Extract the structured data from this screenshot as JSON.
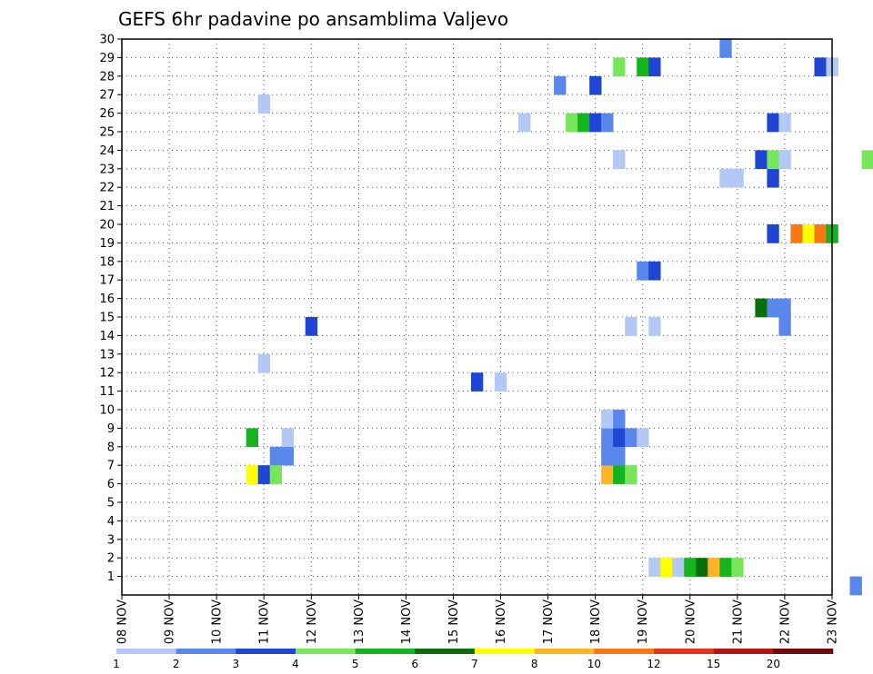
{
  "chart_data": {
    "type": "heatmap",
    "title": "GEFS 6hr padavine po ansamblima Valjevo",
    "y_ticks": [
      "1",
      "2",
      "3",
      "4",
      "5",
      "6",
      "7",
      "8",
      "9",
      "10",
      "11",
      "12",
      "13",
      "14",
      "15",
      "16",
      "17",
      "18",
      "19",
      "20",
      "21",
      "22",
      "23",
      "24",
      "25",
      "26",
      "27",
      "28",
      "29",
      "30"
    ],
    "ylim": [
      0,
      30
    ],
    "x_ticks": [
      "08 NOV",
      "09 NOV",
      "10 NOV",
      "11 NOV",
      "12 NOV",
      "13 NOV",
      "14 NOV",
      "15 NOV",
      "16 NOV",
      "17 NOV",
      "18 NOV",
      "19 NOV",
      "20 NOV",
      "21 NOV",
      "22 NOV",
      "23 NOV"
    ],
    "x_units": "days from 08 NOV 00Z, 6-hour steps",
    "xlim": [
      0,
      15
    ],
    "grid": true,
    "colorbar": {
      "labels": [
        "1",
        "2",
        "3",
        "4",
        "5",
        "6",
        "7",
        "8",
        "10",
        "12",
        "15",
        "20"
      ],
      "colors": [
        "#b4c8f5",
        "#5a87eb",
        "#1e46d2",
        "#78e65a",
        "#14b41e",
        "#0a6e0a",
        "#ffff00",
        "#ffb428",
        "#fa7814",
        "#e63214",
        "#b41414",
        "#6e0a0a"
      ]
    },
    "cells": [
      [
        11.25,
        1,
        1
      ],
      [
        11.5,
        1,
        7
      ],
      [
        11.75,
        1,
        1
      ],
      [
        12.0,
        1,
        5
      ],
      [
        12.25,
        1,
        6
      ],
      [
        12.5,
        1,
        8
      ],
      [
        12.75,
        1,
        5
      ],
      [
        13.0,
        1,
        4
      ],
      [
        10.25,
        6,
        8
      ],
      [
        10.5,
        6,
        5
      ],
      [
        10.75,
        6,
        4
      ],
      [
        10.25,
        7,
        2
      ],
      [
        10.5,
        7,
        2
      ],
      [
        10.25,
        8,
        2
      ],
      [
        10.5,
        8,
        3
      ],
      [
        10.75,
        8,
        2
      ],
      [
        11.0,
        8,
        1
      ],
      [
        10.25,
        9,
        1
      ],
      [
        10.5,
        9,
        2
      ],
      [
        2.75,
        8,
        5
      ],
      [
        3.25,
        7,
        2
      ],
      [
        3.5,
        7,
        2
      ],
      [
        3.5,
        8,
        1
      ],
      [
        2.75,
        6,
        7
      ],
      [
        3.0,
        6,
        3
      ],
      [
        3.25,
        6,
        4
      ],
      [
        3.0,
        12,
        1
      ],
      [
        4.0,
        14,
        3
      ],
      [
        7.5,
        11,
        3
      ],
      [
        8.0,
        11,
        1
      ],
      [
        10.75,
        14,
        1
      ],
      [
        11.25,
        14,
        1
      ],
      [
        14.0,
        14,
        2
      ],
      [
        11.0,
        17,
        2
      ],
      [
        11.25,
        17,
        3
      ],
      [
        13.5,
        15,
        6
      ],
      [
        13.75,
        15,
        2
      ],
      [
        14.0,
        15,
        2
      ],
      [
        13.75,
        19,
        3
      ],
      [
        14.25,
        19,
        9
      ],
      [
        14.5,
        19,
        7
      ],
      [
        14.75,
        19,
        9
      ],
      [
        15.0,
        19,
        5
      ],
      [
        12.75,
        22,
        1
      ],
      [
        13.0,
        22,
        1
      ],
      [
        13.75,
        22,
        3
      ],
      [
        10.5,
        23,
        1
      ],
      [
        13.5,
        23,
        3
      ],
      [
        13.75,
        23,
        4
      ],
      [
        14.0,
        23,
        1
      ],
      [
        15.75,
        23,
        4
      ],
      [
        8.5,
        25,
        1
      ],
      [
        9.5,
        25,
        4
      ],
      [
        9.75,
        25,
        5
      ],
      [
        10.0,
        25,
        3
      ],
      [
        10.25,
        25,
        2
      ],
      [
        13.75,
        25,
        3
      ],
      [
        14.0,
        25,
        1
      ],
      [
        3.0,
        26,
        1
      ],
      [
        9.25,
        27,
        2
      ],
      [
        10.0,
        27,
        3
      ],
      [
        10.5,
        28,
        4
      ],
      [
        11.0,
        28,
        5
      ],
      [
        11.25,
        28,
        3
      ],
      [
        14.75,
        28,
        3
      ],
      [
        15.0,
        28,
        1
      ],
      [
        12.75,
        29,
        2
      ],
      [
        15.5,
        0,
        2
      ]
    ]
  }
}
